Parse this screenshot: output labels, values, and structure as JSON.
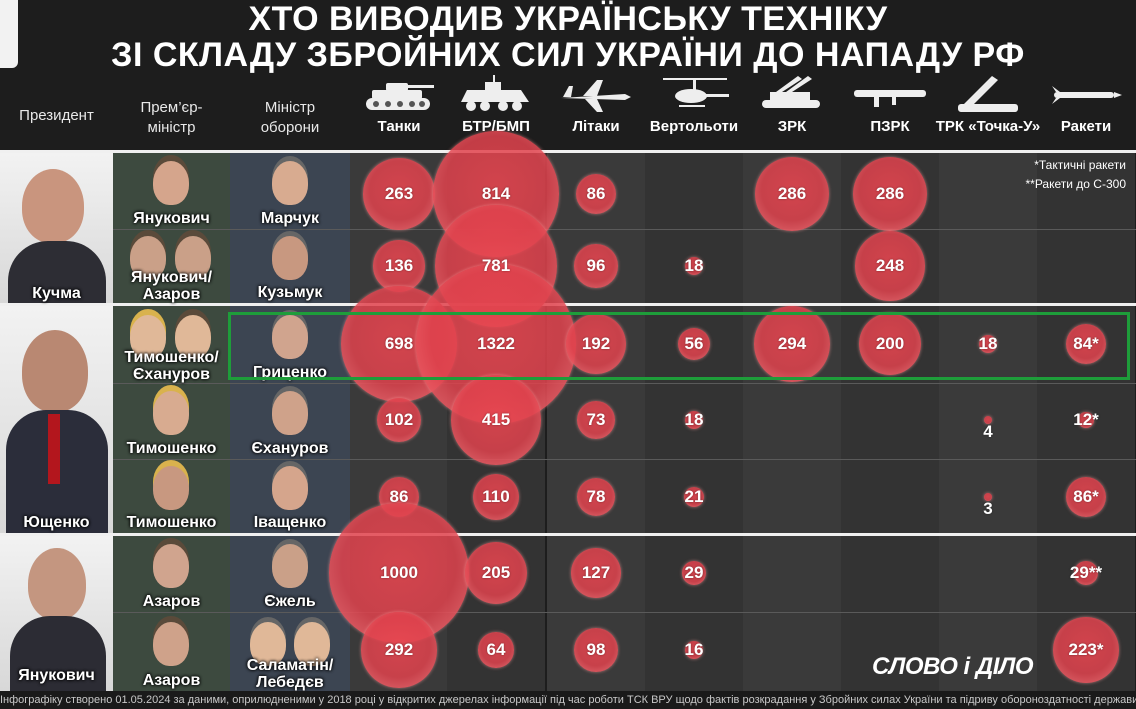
{
  "title": {
    "line1": "ХТО ВИВОДИВ УКРАЇНСЬКУ ТЕХНІКУ",
    "line2": "ЗІ СКЛАДУ ЗБРОЙНИХ СИЛ УКРАЇНИ ДО НАПАДУ РФ"
  },
  "headers": {
    "president": "Президент",
    "pm_line1": "Прем’єр-",
    "pm_line2": "міністр",
    "mod_line1": "Міністр",
    "mod_line2": "оборони"
  },
  "notes": {
    "line1": "*Тактичні ракети",
    "line2": "**Ракети до С-300"
  },
  "presidents": [
    "Кучма",
    "Ющенко",
    "Янукович"
  ],
  "pm_names": [
    "Янукович",
    "Янукович/\nАзаров",
    "Тимошенко/\nЄхануров",
    "Тимошенко",
    "Тимошенко",
    "Азаров",
    "Азаров"
  ],
  "mod_names": [
    "Марчук",
    "Кузьмук",
    "Гриценко",
    "Єхануров",
    "Іващенко",
    "Єжель",
    "Саламатін/\nЛебедєв"
  ],
  "chart_data": {
    "type": "table",
    "columns": [
      "Танки",
      "БТР/БМП",
      "Літаки",
      "Вертольоти",
      "ЗРК",
      "ПЗРК",
      "ТРК «Точка-У»",
      "Ракети"
    ],
    "rows": [
      {
        "president": "Кучма",
        "pm": "Янукович",
        "minister": "Марчук",
        "values": [
          263,
          814,
          86,
          null,
          286,
          286,
          null,
          null
        ],
        "labels": [
          "263",
          "814",
          "86",
          "",
          "286",
          "286",
          "",
          ""
        ]
      },
      {
        "president": "Кучма",
        "pm": "Янукович/Азаров",
        "minister": "Кузьмук",
        "values": [
          136,
          781,
          96,
          18,
          null,
          248,
          null,
          null
        ],
        "labels": [
          "136",
          "781",
          "96",
          "18",
          "",
          "248",
          "",
          ""
        ]
      },
      {
        "president": "Ющенко",
        "pm": "Тимошенко/Єхануров",
        "minister": "Гриценко",
        "values": [
          698,
          1322,
          192,
          56,
          294,
          200,
          18,
          84
        ],
        "labels": [
          "698",
          "1322",
          "192",
          "56",
          "294",
          "200",
          "18",
          "84*"
        ]
      },
      {
        "president": "Ющенко",
        "pm": "Тимошенко",
        "minister": "Єхануров",
        "values": [
          102,
          415,
          73,
          18,
          null,
          null,
          4,
          12
        ],
        "labels": [
          "102",
          "415",
          "73",
          "18",
          "",
          "",
          "4",
          "12*"
        ]
      },
      {
        "president": "Ющенко",
        "pm": "Тимошенко",
        "minister": "Іващенко",
        "values": [
          86,
          110,
          78,
          21,
          null,
          null,
          3,
          86
        ],
        "labels": [
          "86",
          "110",
          "78",
          "21",
          "",
          "",
          "3",
          "86*"
        ]
      },
      {
        "president": "Янукович",
        "pm": "Азаров",
        "minister": "Єжель",
        "values": [
          1000,
          205,
          127,
          29,
          null,
          null,
          null,
          29
        ],
        "labels": [
          "1000",
          "205",
          "127",
          "29",
          "",
          "",
          "",
          "29**"
        ]
      },
      {
        "president": "Янукович",
        "pm": "Азаров",
        "minister": "Саламатін/Лебедєв",
        "values": [
          292,
          64,
          98,
          16,
          null,
          null,
          null,
          223
        ],
        "labels": [
          "292",
          "64",
          "98",
          "16",
          "",
          "",
          "",
          "223*"
        ]
      }
    ],
    "highlighted_row": 2,
    "colors": {
      "bubble": "#e0424d",
      "highlight": "#1e9d3a"
    }
  },
  "logo": "СЛОВО і ДІЛО",
  "footer": "Інфографіку створено 01.05.2024 за даними, оприлюдненими у 2018 році у відкритих джерелах інформації під час роботи ТСК ВРУ щодо фактів розкрадання у Збройних силах України та підриву обороноздатності держави"
}
